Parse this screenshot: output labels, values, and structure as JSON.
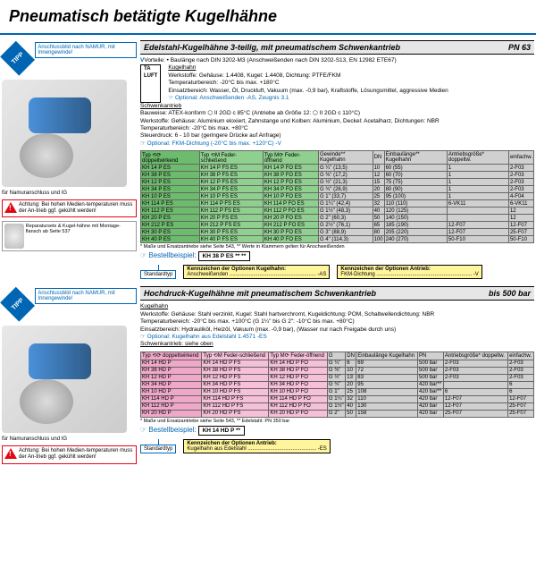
{
  "pageTitle": "Pneumatisch betätigte Kugelhähne",
  "tipp": "TIPP",
  "namur": "Anschlussbild nach NAMUR, mit Innengewinde!",
  "imgCaption": "für Namuranschluss und IG",
  "warning": "Achtung: Bei hohen Medien-temperaturen muss der An-trieb ggf. gekühlt werden!",
  "repair": "Reparatursets & Kugel-hähne mit Montage-flansch ab Seite 537",
  "sec1": {
    "title": "Edelstahl-Kugelhähne 3-teilig, mit pneumatischem Schwenkantrieb",
    "pn": "PN 63",
    "vorteile": "Vorteile: • Baulänge nach DIN 3202-M3 (Anschweißenden nach DIN 3202-S13, EN 12982 ETE67)",
    "kugelhahn": "Kugelhahn",
    "werkstoffe": "Werkstoffe: Gehäuse: 1.4408, Kugel: 1.4408, Dichtung: PTFE/FKM",
    "temp": "Temperaturbereich: -20°C bis max. +180°C",
    "einsatz": "Einsatzbereich: Wasser, Öl, Druckluft, Vakuum (max. -0,9 bar), Kraftstoffe, Lösungsmittel, aggressive Medien",
    "opt1": "☞ Optional: Anschweißenden -AS, Zeugnis 3.1",
    "schwenk": "Schwenkantrieb",
    "bauweise": "Bauweise: ATEX-konform ⬡ II 2GD c 85°C (Antriebe ab Größe 12: ⬡ II 2GD c 110°C)",
    "werkstoffe2": "Werkstoffe: Gehäuse: Aluminium eloxiert, Zahnstange und Kolben: Aluminium, Deckel: Acetalharz, Dichtungen: NBR",
    "temp2": "Temperaturbereich: -20°C bis max. +80°C",
    "steuer": "Steuerdruck: 6 - 10 bar (geringere Drücke auf Anfrage)",
    "opt2": "☞ Optional: FKM-Dichtung (-20°C bis max. +120°C) -V",
    "tableNote": "* Maße und Ersatzantriebe siehe Seite 543, ** Werte in Klammern gelten für Anschweißenden",
    "bestell": "☞ Bestellbeispiel:",
    "bestellSample": "KH 38 P ES ** **",
    "std": "Standardtyp",
    "optK": "Kennzeichen der Optionen Kugelhahn:",
    "optKv": "Anschweißenden .......................................................... -AS",
    "optA": "Kennzeichen der Optionen Antrieb:",
    "optAv": "FKM-Dichtung ................................................................ -V",
    "headers": [
      "Typ ⟲⟳ doppeltwirkend",
      "Typ ⟲M Feder-schließend",
      "Typ M⟳ Feder-öffnend",
      "Gewinde** Kugelhahn",
      "DN",
      "Einbaulänge** Kugelhahn",
      "Antriebsgröße* doppeltw.",
      "einfachw."
    ],
    "rows": [
      [
        "KH 14 P ES",
        "KH 14 P FS ES",
        "KH 14 P FO ES",
        "G ¼\" (13,5)",
        "10",
        "60 (55)",
        "1",
        "2-F03"
      ],
      [
        "KH 38 P ES",
        "KH 38 P FS ES",
        "KH 38 P FO ES",
        "G ⅜\" (17,2)",
        "12",
        "60 (70)",
        "1",
        "2-F03"
      ],
      [
        "KH 12 P ES",
        "KH 12 P FS ES",
        "KH 12 P FO ES",
        "G ½\" (21,3)",
        "15",
        "75 (75)",
        "1",
        "2-F03"
      ],
      [
        "KH 34 P ES",
        "KH 34 P FS ES",
        "KH 34 P FO ES",
        "G ¾\" (26,9)",
        "20",
        "80 (90)",
        "1",
        "2-F03"
      ],
      [
        "KH 10 P ES",
        "KH 10 P FS ES",
        "KH 10 P FO ES",
        "G 1\" (33,7)",
        "25",
        "95 (100)",
        "1",
        "4-F04"
      ],
      [
        "KH 114 P ES",
        "KH 114 P FS ES",
        "KH 114 P FO ES",
        "G 1¼\" (42,4)",
        "32",
        "110 (110)",
        "6-VK11",
        "6-VK11"
      ],
      [
        "KH 112 P ES",
        "KH 112 P FS ES",
        "KH 112 P FO ES",
        "G 1½\" (48,3)",
        "40",
        "120 (125)",
        "",
        "12"
      ],
      [
        "KH 20 P ES",
        "KH 20 P FS ES",
        "KH 20 P FO ES",
        "G 2\" (60,3)",
        "50",
        "140 (150)",
        "",
        "12"
      ],
      [
        "KH 212 P ES",
        "KH 212 P FS ES",
        "KH 212 P FO ES",
        "G 2½\" (76,1)",
        "65",
        "185 (190)",
        "12-F07",
        "12-F07"
      ],
      [
        "KH 30 P ES",
        "KH 30 P FS ES",
        "KH 30 P FO ES",
        "G 3\" (88,9)",
        "80",
        "205 (220)",
        "12-F07",
        "25-F07"
      ],
      [
        "KH 40 P ES",
        "KH 40 P FS ES",
        "KH 40 P FO ES",
        "G 4\" (114,3)",
        "100",
        "240 (270)",
        "50-F10",
        "50-F10"
      ]
    ]
  },
  "sec2": {
    "title": "Hochdruck-Kugelhähne mit pneumatischem Schwenkantrieb",
    "pn": "bis 500 bar",
    "kugelhahn": "Kugelhahn",
    "werkstoffe": "Werkstoffe: Gehäuse: Stahl verzinkt, Kugel: Stahl hartverchromt, Kugeldichtung: POM, Schaltwellendichtung: NBR",
    "temp": "Temperaturbereich: -20°C bis max. +100°C (G 1¼\" bis G 2\": -10°C bis max. +80°C)",
    "einsatz": "Einsatzbereich: Hydrauliköl, Heizöl, Vakuum (max. -0,9 bar), (Wasser nur nach Freigabe durch uns)",
    "opt1": "☞ Optional: Kugelhahn aus Edelstahl 1.4571 -ES",
    "schwenk": "Schwenkantrieb: siehe oben",
    "tableNote": "* Maße und Ersatzantriebe siehe Seite 543, ** Edelstahl: PN 350 bar",
    "bestell": "☞ Bestellbeispiel:",
    "bestellSample": "KH 14 HD P **",
    "std": "Standardtyp",
    "optA": "Kennzeichen der Optionen Antrieb:",
    "optAv": "Kugelhahn aus Edelstahl .............................................. -ES",
    "headers": [
      "Typ ⟲⟳ doppeltwirkend",
      "Typ ⟲M Feder-schließend",
      "Typ M⟳ Feder-öffnend",
      "G",
      "DN",
      "Einbaulänge Kugelhahn",
      "PN",
      "Antriebsgröße* doppeltw.",
      "einfachw."
    ],
    "rows": [
      [
        "KH 14 HD P",
        "KH 14 HD P FS",
        "KH 14 HD P FO",
        "G ¼\"",
        "6",
        "69",
        "500 bar",
        "2-F03",
        "2-F03"
      ],
      [
        "KH 38 HD P",
        "KH 38 HD P FS",
        "KH 38 HD P FO",
        "G ⅜\"",
        "10",
        "72",
        "500 bar",
        "2-F03",
        "2-F03"
      ],
      [
        "KH 12 HD P",
        "KH 12 HD P FS",
        "KH 12 HD P FO",
        "G ½\"",
        "13",
        "83",
        "500 bar",
        "2-F03",
        "2-F03"
      ],
      [
        "KH 34 HD P",
        "KH 34 HD P FS",
        "KH 34 HD P FO",
        "G ¾\"",
        "20",
        "95",
        "420 bar**",
        "",
        "6"
      ],
      [
        "KH 10 HD P",
        "KH 10 HD P FS",
        "KH 10 HD P FO",
        "G 1\"",
        "25",
        "108",
        "420 bar**",
        "6",
        "6"
      ],
      [
        "KH 114 HD P",
        "KH 114 HD P FS",
        "KH 114 HD P FO",
        "G 1¼\"",
        "32",
        "110",
        "420 bar",
        "12-F07",
        "12-F07"
      ],
      [
        "KH 112 HD P",
        "KH 112 HD P FS",
        "KH 112 HD P FO",
        "G 1½\"",
        "40",
        "130",
        "420 bar",
        "12-F07",
        "25-F07"
      ],
      [
        "KH 20 HD P",
        "KH 20 HD P FS",
        "KH 20 HD P FO",
        "G 2\"",
        "50",
        "158",
        "420 bar",
        "25-F07",
        "25-F07"
      ]
    ]
  }
}
